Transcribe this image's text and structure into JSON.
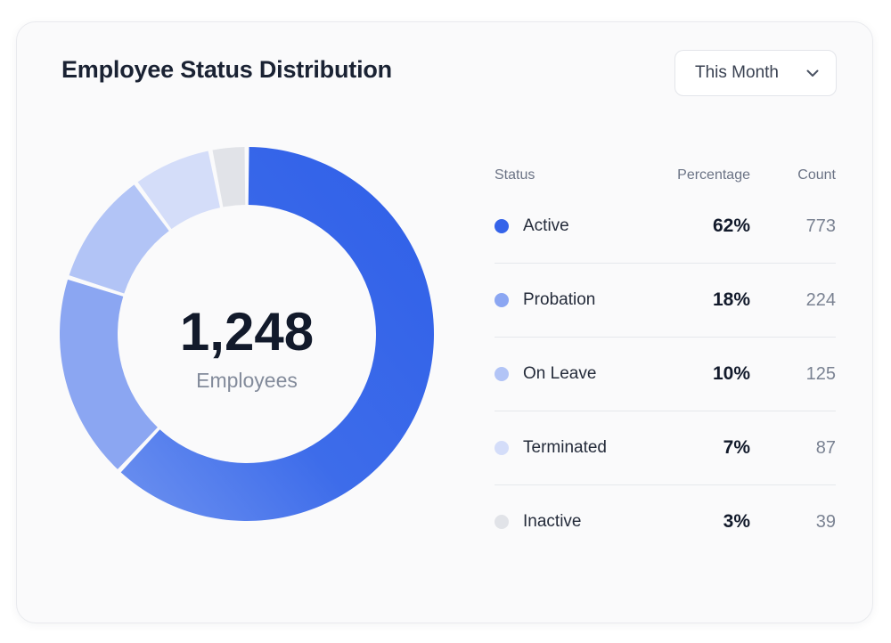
{
  "card": {
    "title": "Employee Status Distribution"
  },
  "filter": {
    "selected": "This Month",
    "icon": "chevron-down-icon"
  },
  "legend": {
    "headers": {
      "status": "Status",
      "percentage": "Percentage",
      "count": "Count"
    }
  },
  "chart_data": {
    "type": "pie",
    "variant": "donut",
    "title": "Employee Status Distribution",
    "center_value": "1,248",
    "center_label": "Employees",
    "total": 1248,
    "categories": [
      "Active",
      "Probation",
      "On Leave",
      "Terminated",
      "Inactive"
    ],
    "percent_labels": [
      "62%",
      "18%",
      "10%",
      "7%",
      "3%"
    ],
    "values": [
      773,
      224,
      125,
      87,
      39
    ],
    "colors": [
      "#3563e9",
      "#8ba6f2",
      "#b2c4f6",
      "#d4ddf9",
      "#e1e3e8"
    ],
    "legend_position": "right"
  }
}
